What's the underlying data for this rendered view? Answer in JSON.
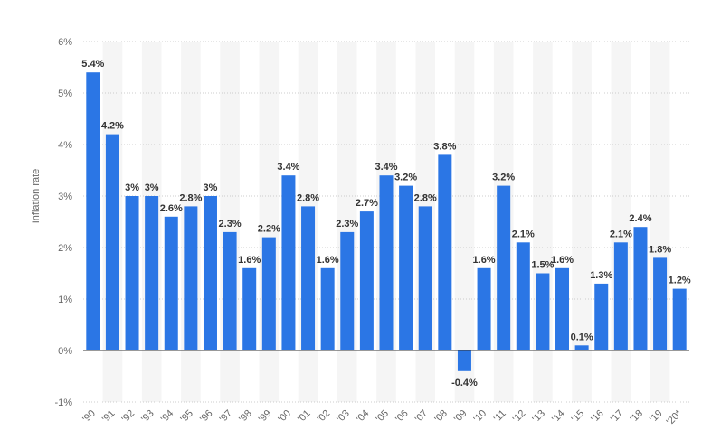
{
  "chart_data": {
    "type": "bar",
    "categories": [
      "'90",
      "'91",
      "'92",
      "'93",
      "'94",
      "'95",
      "'96",
      "'97",
      "'98",
      "'99",
      "'00",
      "'01",
      "'02",
      "'03",
      "'04",
      "'05",
      "'06",
      "'07",
      "'08",
      "'09",
      "'10",
      "'11",
      "'12",
      "'13",
      "'14",
      "'15",
      "'16",
      "'17",
      "'18",
      "'19",
      "'20*"
    ],
    "values": [
      5.4,
      4.2,
      3.0,
      3.0,
      2.6,
      2.8,
      3.0,
      2.3,
      1.6,
      2.2,
      3.4,
      2.8,
      1.6,
      2.3,
      2.7,
      3.4,
      3.2,
      2.8,
      3.8,
      -0.4,
      1.6,
      3.2,
      2.1,
      1.5,
      1.6,
      0.1,
      1.3,
      2.1,
      2.4,
      1.8,
      1.2
    ],
    "data_labels": [
      "5.4%",
      "4.2%",
      "3%",
      "3%",
      "2.6%",
      "2.8%",
      "3%",
      "2.3%",
      "1.6%",
      "2.2%",
      "3.4%",
      "2.8%",
      "1.6%",
      "2.3%",
      "2.7%",
      "3.4%",
      "3.2%",
      "2.8%",
      "3.8%",
      "-0.4%",
      "1.6%",
      "3.2%",
      "2.1%",
      "1.5%",
      "1.6%",
      "0.1%",
      "1.3%",
      "2.1%",
      "2.4%",
      "1.8%",
      "1.2%"
    ],
    "ylabel": "Inflation rate",
    "xlabel": "",
    "ylim": [
      -1,
      6
    ],
    "yticks": [
      6,
      5,
      4,
      3,
      2,
      1,
      0,
      -1
    ],
    "ytick_labels": [
      "6%",
      "5%",
      "4%",
      "3%",
      "2%",
      "1%",
      "0%",
      "-1%"
    ],
    "grid": true,
    "colors": {
      "bar": "#2b76e5",
      "grid": "#cccccc",
      "zero_line": "#333333",
      "band": "#f5f5f5"
    }
  }
}
